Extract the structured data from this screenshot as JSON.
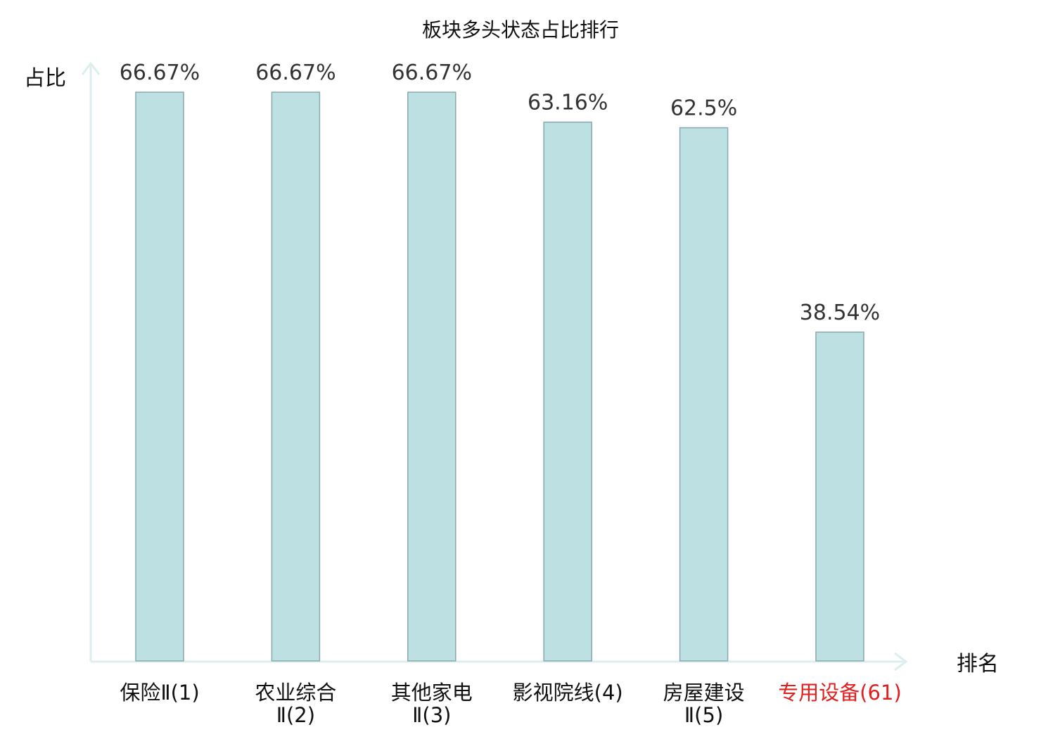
{
  "chart_data": {
    "type": "bar",
    "title": "板块多头状态占比排行",
    "ylabel": "占比",
    "xlabel": "排名",
    "categories": [
      [
        "保险Ⅱ(1)"
      ],
      [
        "农业综合",
        "Ⅱ(2)"
      ],
      [
        "其他家电",
        "Ⅱ(3)"
      ],
      [
        "影视院线(4)"
      ],
      [
        "房屋建设",
        "Ⅱ(5)"
      ],
      [
        "专用设备(61)"
      ]
    ],
    "values": [
      66.67,
      66.67,
      66.67,
      63.16,
      62.5,
      38.54
    ],
    "value_labels": [
      "66.67%",
      "66.67%",
      "66.67%",
      "63.16%",
      "62.5%",
      "38.54%"
    ],
    "highlight_index": 5,
    "ylim": [
      0,
      70
    ],
    "grid": false,
    "colors": {
      "bar_fill": "#bde0e3",
      "bar_stroke": "#8aa8ab",
      "axis": "#dcefee",
      "highlight": "#e02020"
    }
  }
}
